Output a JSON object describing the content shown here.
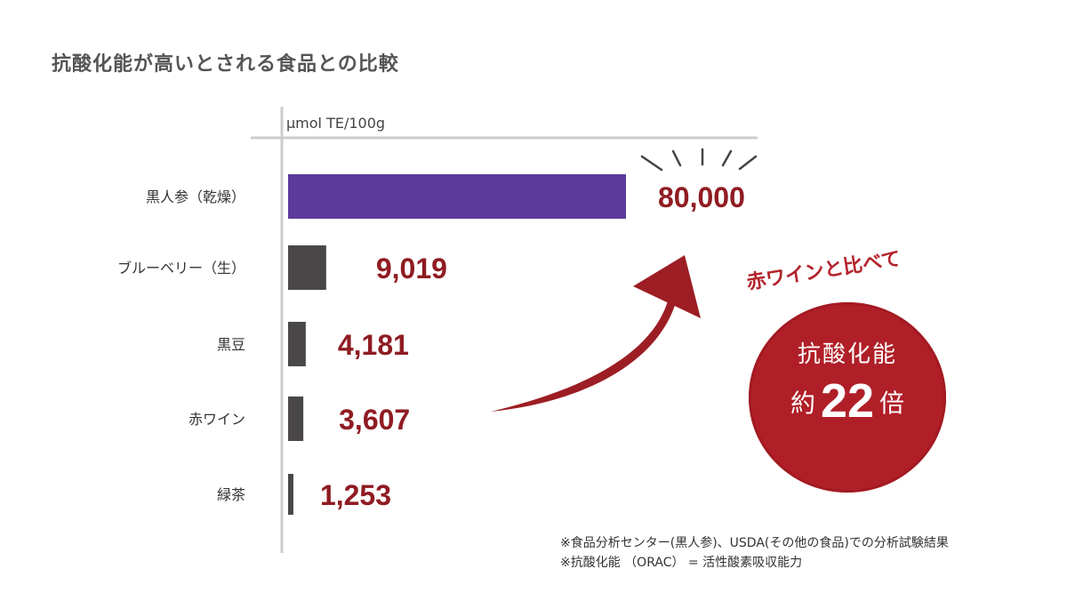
{
  "title": "抗酸化能が高いとされる食品との比較",
  "chart_data": {
    "type": "bar",
    "orientation": "horizontal",
    "unit_label": "μmol TE/100g",
    "categories": [
      "黒人参（乾燥）",
      "ブルーベリー（生）",
      "黒豆",
      "赤ワイン",
      "緑茶"
    ],
    "values": [
      80000,
      9019,
      4181,
      3607,
      1253
    ],
    "value_labels": [
      "80,000",
      "9,019",
      "4,181",
      "3,607",
      "1,253"
    ],
    "bar_colors": [
      "#5b3a9b",
      "#4a4749",
      "#4a4749",
      "#4a4749",
      "#4a4749"
    ],
    "label_color": "#8f1c22",
    "grid": false
  },
  "highlight": {
    "caption": "赤ワインと比べて",
    "line1": "抗酸化能",
    "line2_prefix": "約",
    "line2_number": "22",
    "line2_suffix": "倍",
    "color": "#b01f28"
  },
  "footnotes": [
    "※食品分析センター(黒人参)、USDA(その他の食品)での分析試験結果",
    "※抗酸化能 （ORAC） = 活性酸素吸収能力"
  ]
}
